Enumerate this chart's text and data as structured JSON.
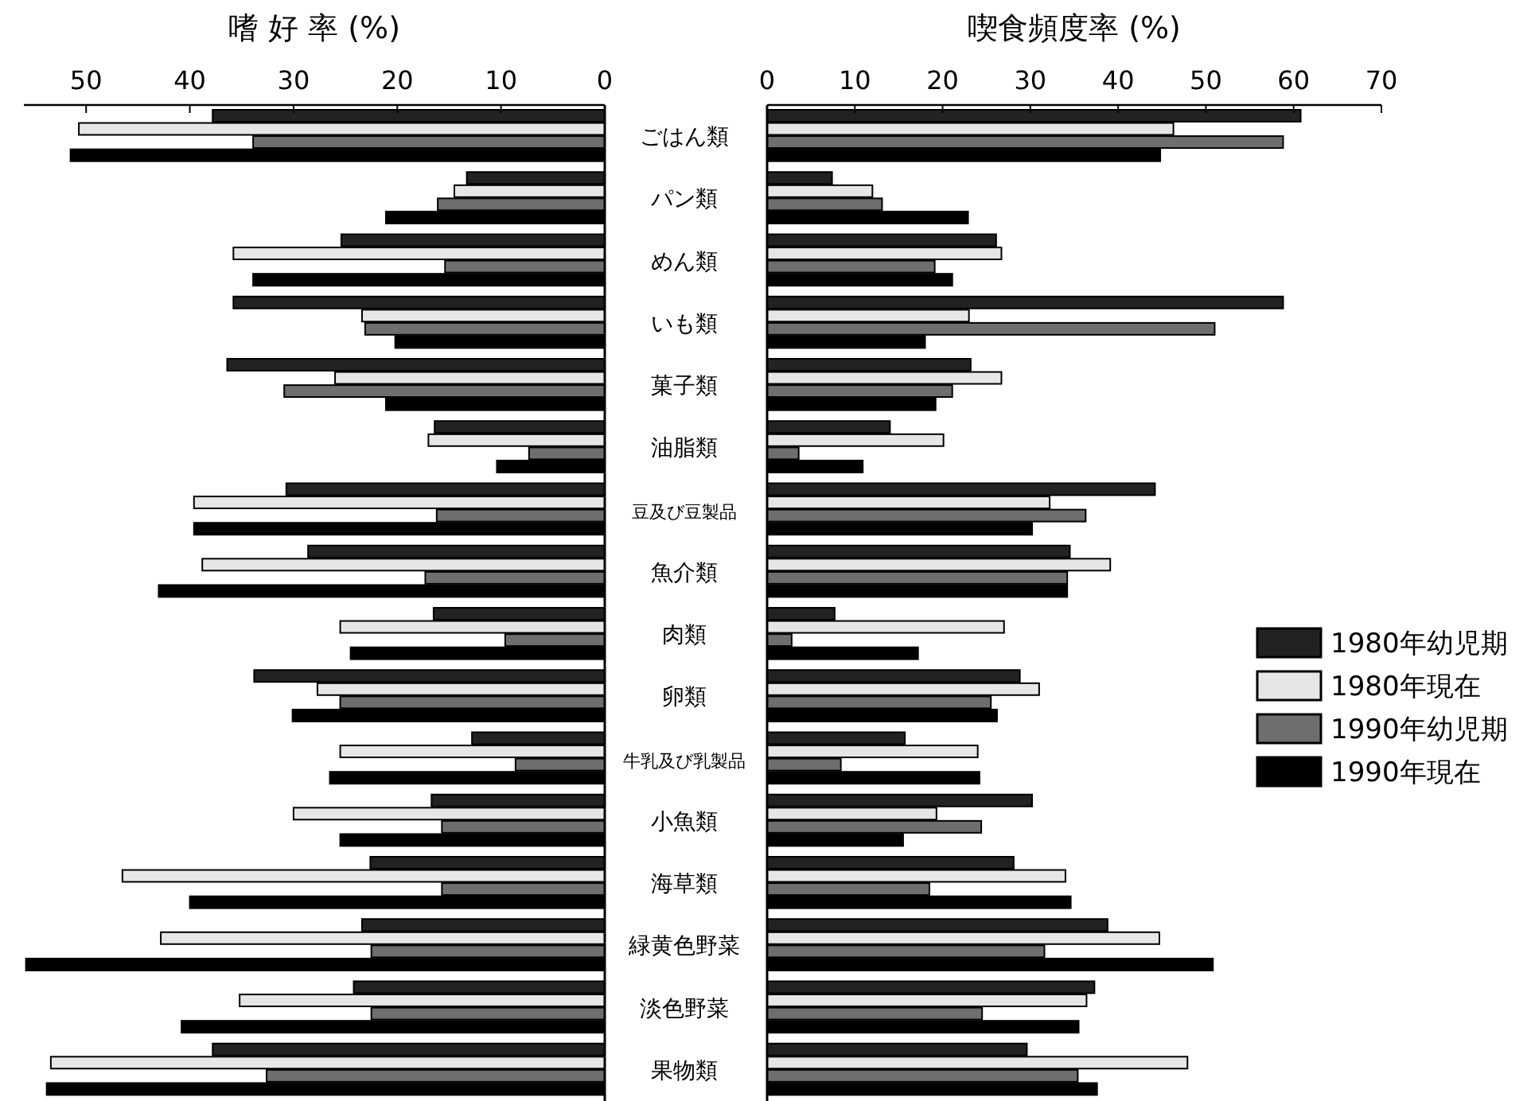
{
  "chart_data": [
    {
      "type": "bar",
      "orientation": "horizontal",
      "xlabel": "嗜 好 率 (%)",
      "categories": [
        "ごはん類",
        "パン類",
        "めん類",
        "いも類",
        "菓子類",
        "油脂類",
        "豆及び豆製品",
        "魚介類",
        "肉類",
        "卵類",
        "牛乳及び乳製品",
        "小魚類",
        "海草類",
        "緑黄色野菜",
        "淡色野菜",
        "果物類"
      ],
      "series": [
        {
          "color": "#222222",
          "values": [
            37.8,
            13.3,
            25.4,
            35.8,
            36.4,
            16.4,
            30.7,
            28.6,
            16.5,
            33.8,
            12.8,
            16.7,
            22.6,
            23.4,
            24.2,
            37.8
          ]
        },
        {
          "color": "#e6e6e6",
          "values": [
            50.7,
            14.5,
            35.8,
            23.4,
            26.0,
            17.0,
            39.6,
            38.8,
            25.5,
            27.7,
            25.5,
            30.0,
            46.5,
            42.8,
            35.2,
            53.4
          ]
        },
        {
          "color": "#6e6e6e",
          "values": [
            33.9,
            16.1,
            15.4,
            23.1,
            30.9,
            7.3,
            16.2,
            17.3,
            9.6,
            25.5,
            8.6,
            15.7,
            15.7,
            22.5,
            22.5,
            32.6
          ]
        },
        {
          "color": "#000000",
          "values": [
            51.5,
            21.1,
            33.9,
            20.2,
            21.1,
            10.4,
            39.6,
            43.0,
            24.5,
            30.1,
            26.5,
            25.5,
            40.0,
            55.8,
            40.8,
            53.8
          ]
        }
      ],
      "xlim": [
        56,
        0
      ],
      "xticks": [
        50,
        40,
        30,
        20,
        10,
        0
      ],
      "legend": false
    },
    {
      "type": "bar",
      "orientation": "horizontal",
      "xlabel": "喫食頻度率 (%)",
      "categories": [
        null,
        null,
        null,
        null,
        null,
        null,
        null,
        null,
        null,
        null,
        null,
        null,
        null,
        null,
        null,
        null
      ],
      "series": [
        {
          "name": "1980年幼児期",
          "color": "#222222",
          "values": [
            60.8,
            7.4,
            26.1,
            58.8,
            23.2,
            14.0,
            44.2,
            34.5,
            7.7,
            28.8,
            15.7,
            30.2,
            28.1,
            38.8,
            37.3,
            29.6
          ]
        },
        {
          "name": "1980年現在",
          "color": "#e6e6e6",
          "values": [
            46.3,
            12.0,
            26.7,
            23.0,
            26.7,
            20.1,
            32.2,
            39.1,
            27.0,
            31.0,
            24.0,
            19.3,
            34.0,
            44.7,
            36.4,
            47.9
          ]
        },
        {
          "name": "1990年幼児期",
          "color": "#6e6e6e",
          "values": [
            58.8,
            13.1,
            19.1,
            51.0,
            21.1,
            3.6,
            36.3,
            34.2,
            2.8,
            25.5,
            8.4,
            24.4,
            18.5,
            31.6,
            24.5,
            35.4
          ]
        },
        {
          "name": "1990年現在",
          "color": "#000000",
          "values": [
            44.8,
            22.9,
            21.1,
            18.0,
            19.2,
            10.9,
            30.2,
            34.2,
            17.2,
            26.2,
            24.2,
            15.5,
            34.6,
            50.8,
            35.5,
            37.6
          ]
        }
      ],
      "xlim": [
        0,
        70
      ],
      "xticks": [
        0,
        10,
        20,
        30,
        40,
        50,
        60,
        70
      ],
      "legend": "right"
    }
  ]
}
